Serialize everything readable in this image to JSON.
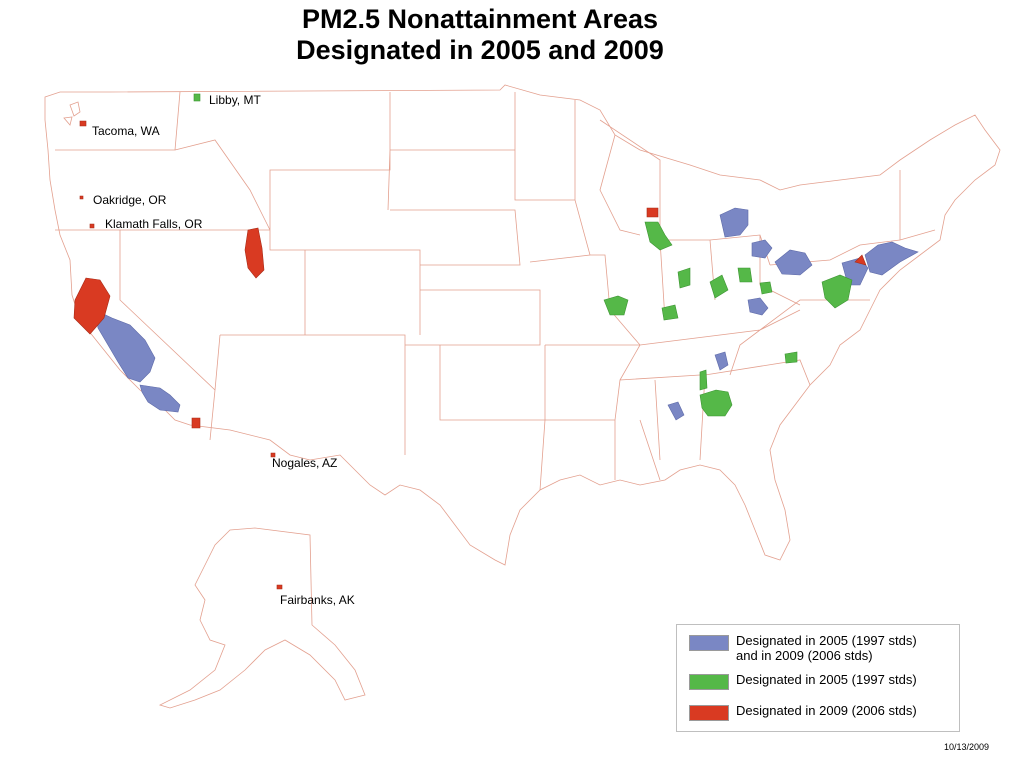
{
  "title": {
    "line1": "PM2.5 Nonattainment Areas",
    "line2": "Designated in 2005 and 2009"
  },
  "colors": {
    "both": "#7a87c4",
    "d2005": "#55b848",
    "d2009": "#d93a22",
    "borders": "#e3a08f"
  },
  "places": {
    "libby": "Libby, MT",
    "tacoma": "Tacoma, WA",
    "oakridge": "Oakridge, OR",
    "klamath": "Klamath Falls, OR",
    "nogales": "Nogales, AZ",
    "fairbanks": "Fairbanks, AK"
  },
  "legend": {
    "items": [
      {
        "label": "Designated in 2005 (1997 stds)\nand in 2009 (2006 stds)",
        "color": "#7a87c4"
      },
      {
        "label": "Designated in 2005 (1997 stds)",
        "color": "#55b848"
      },
      {
        "label": "Designated in 2009 (2006 stds)",
        "color": "#d93a22"
      }
    ]
  },
  "date": "10/13/2009"
}
